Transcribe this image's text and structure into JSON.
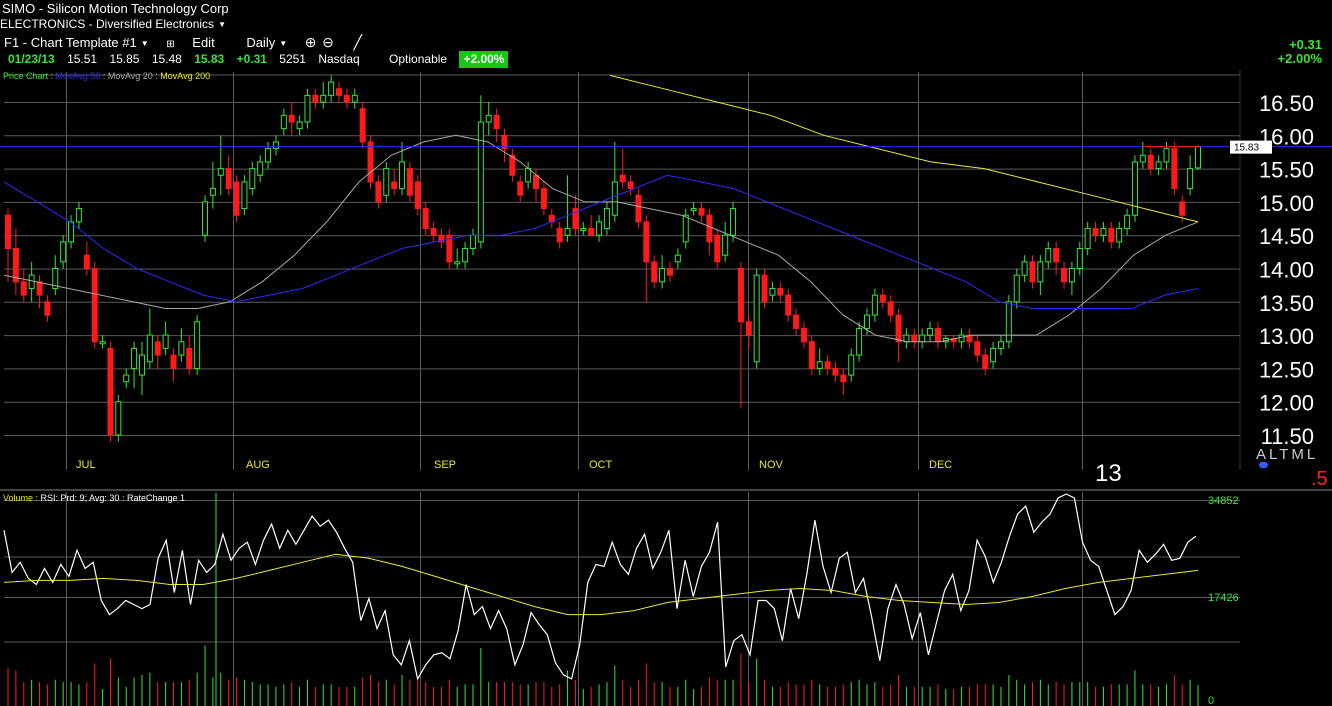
{
  "header": {
    "symbol_title": "SIMO - Silicon Motion Technology Corp",
    "group": "ELECTRONICS - Diversified Electronics",
    "template": "F1 - Chart Template #1",
    "edit_label": "Edit",
    "period": "Daily"
  },
  "quote": {
    "date": "01/23/13",
    "open": "15.51",
    "high": "15.85",
    "low": "15.48",
    "close": "15.83",
    "change": "+0.31",
    "volume": "5251",
    "exchange": "Nasdaq",
    "optionable": "Optionable",
    "pct_badge": "+2.00%"
  },
  "change_display": {
    "abs": "+0.31",
    "pct": "+2.00%"
  },
  "legend_price": {
    "price": "Price Chart",
    "ma50": "MovAvg 50",
    "ma20": "MovAvg 20",
    "ma200": "MovAvg 200"
  },
  "legend_lower": {
    "volume": "Volume",
    "rsi": "RSI: Prd: 9; Avg: 30",
    "rate": "RateChange 1"
  },
  "bottom_labels": {
    "year": "13",
    "altml": "ALTML",
    "fraction": ".5"
  },
  "colors": {
    "up": "#35e635",
    "down": "#ff1a1a",
    "ma50": "#2a2aff",
    "ma20": "#a8a8a8",
    "ma200": "#e8e830",
    "grid": "#5a5a5a",
    "rsi": "#ffffff",
    "rsi_avg": "#e8e830",
    "axis_text": "#35e635"
  },
  "chart_data": [
    {
      "type": "candlestick",
      "yticks": [
        "16.50",
        "16.00",
        "15.50",
        "15.00",
        "14.50",
        "14.00",
        "13.50",
        "13.00",
        "12.50",
        "12.00",
        "11.50"
      ],
      "ylim": [
        11.5,
        16.5
      ],
      "months": [
        "JUL",
        "AUG",
        "SEP",
        "OCT",
        "NOV",
        "DEC"
      ],
      "last_price_label": "15.83",
      "horizontal_line": 15.83,
      "candles": [
        [
          14.8,
          14.3,
          14.9,
          13.8
        ],
        [
          14.3,
          13.8,
          14.6,
          13.6
        ],
        [
          13.8,
          13.6,
          14.0,
          13.5
        ],
        [
          13.7,
          13.9,
          14.1,
          13.5
        ],
        [
          13.8,
          13.6,
          13.9,
          13.4
        ],
        [
          13.5,
          13.3,
          13.6,
          13.2
        ],
        [
          13.7,
          14.0,
          14.2,
          13.6
        ],
        [
          14.1,
          14.4,
          14.5,
          14.0
        ],
        [
          14.4,
          14.7,
          14.8,
          14.3
        ],
        [
          14.7,
          14.9,
          15.0,
          14.6
        ],
        [
          14.2,
          14.0,
          14.4,
          13.9
        ],
        [
          14.0,
          12.9,
          14.1,
          12.8
        ],
        [
          12.9,
          12.9,
          13.0,
          12.8
        ],
        [
          12.8,
          11.5,
          12.9,
          11.4
        ],
        [
          11.5,
          12.0,
          12.1,
          11.4
        ],
        [
          12.3,
          12.4,
          12.5,
          12.2
        ],
        [
          12.5,
          12.8,
          12.9,
          12.2
        ],
        [
          12.4,
          12.7,
          12.9,
          12.1
        ],
        [
          12.6,
          13.0,
          13.4,
          12.5
        ],
        [
          12.9,
          12.7,
          13.0,
          12.5
        ],
        [
          12.8,
          13.0,
          13.2,
          12.7
        ],
        [
          12.7,
          12.5,
          12.8,
          12.3
        ],
        [
          12.7,
          12.9,
          13.1,
          12.6
        ],
        [
          12.8,
          12.5,
          13.0,
          12.4
        ],
        [
          12.5,
          13.2,
          13.3,
          12.4
        ],
        [
          14.5,
          15.0,
          15.1,
          14.4
        ],
        [
          15.1,
          15.2,
          15.6,
          14.9
        ],
        [
          15.4,
          15.5,
          16.0,
          15.1
        ],
        [
          15.5,
          15.2,
          15.7,
          15.1
        ],
        [
          15.3,
          14.8,
          15.4,
          14.7
        ],
        [
          14.9,
          15.3,
          15.4,
          14.8
        ],
        [
          15.2,
          15.5,
          15.6,
          15.1
        ],
        [
          15.4,
          15.6,
          15.7,
          15.3
        ],
        [
          15.6,
          15.8,
          15.9,
          15.5
        ],
        [
          15.8,
          15.9,
          16.0,
          15.7
        ],
        [
          16.1,
          16.3,
          16.4,
          16.0
        ],
        [
          16.3,
          16.2,
          16.5,
          16.0
        ],
        [
          16.1,
          16.2,
          16.3,
          16.0
        ],
        [
          16.2,
          16.6,
          16.7,
          16.1
        ],
        [
          16.6,
          16.5,
          16.7,
          16.4
        ],
        [
          16.5,
          16.6,
          16.8,
          16.4
        ],
        [
          16.6,
          16.8,
          16.9,
          16.5
        ],
        [
          16.7,
          16.6,
          16.8,
          16.5
        ],
        [
          16.6,
          16.5,
          16.7,
          16.4
        ],
        [
          16.5,
          16.6,
          16.7,
          16.4
        ],
        [
          16.4,
          15.9,
          16.5,
          15.8
        ],
        [
          15.9,
          15.3,
          16.0,
          15.2
        ],
        [
          15.3,
          15.0,
          15.4,
          14.9
        ],
        [
          15.1,
          15.5,
          15.6,
          15.0
        ],
        [
          15.3,
          15.2,
          15.5,
          15.1
        ],
        [
          15.2,
          15.6,
          15.9,
          15.1
        ],
        [
          15.5,
          15.1,
          15.6,
          15.0
        ],
        [
          15.3,
          14.9,
          15.4,
          14.8
        ],
        [
          14.9,
          14.6,
          15.0,
          14.5
        ],
        [
          14.6,
          14.5,
          14.7,
          14.4
        ],
        [
          14.5,
          14.4,
          14.6,
          14.3
        ],
        [
          14.5,
          14.1,
          14.6,
          14.0
        ],
        [
          14.1,
          14.1,
          14.3,
          14.0
        ],
        [
          14.1,
          14.3,
          14.4,
          14.0
        ],
        [
          14.3,
          14.5,
          14.6,
          14.2
        ],
        [
          14.4,
          16.2,
          16.6,
          14.3
        ],
        [
          16.2,
          16.3,
          16.5,
          16.0
        ],
        [
          16.3,
          16.1,
          16.4,
          15.9
        ],
        [
          16.0,
          15.8,
          16.1,
          15.6
        ],
        [
          15.7,
          15.4,
          15.8,
          15.3
        ],
        [
          15.3,
          15.1,
          15.4,
          15.0
        ],
        [
          15.3,
          15.5,
          15.6,
          15.2
        ],
        [
          15.4,
          15.2,
          15.5,
          15.0
        ],
        [
          15.2,
          14.9,
          15.3,
          14.8
        ],
        [
          14.8,
          14.7,
          14.9,
          14.6
        ],
        [
          14.6,
          14.4,
          14.7,
          14.3
        ],
        [
          14.5,
          14.6,
          15.4,
          14.4
        ],
        [
          14.9,
          14.6,
          15.1,
          14.5
        ],
        [
          14.6,
          14.6,
          14.7,
          14.5
        ],
        [
          14.6,
          14.5,
          14.8,
          14.5
        ],
        [
          14.5,
          14.7,
          14.8,
          14.4
        ],
        [
          14.6,
          14.9,
          15.0,
          14.5
        ],
        [
          14.8,
          15.3,
          15.9,
          14.7
        ],
        [
          15.4,
          15.3,
          15.8,
          15.2
        ],
        [
          15.3,
          15.2,
          15.4,
          15.1
        ],
        [
          15.1,
          14.7,
          15.2,
          14.6
        ],
        [
          14.7,
          14.1,
          14.8,
          13.5
        ],
        [
          14.1,
          13.8,
          14.2,
          13.7
        ],
        [
          13.8,
          14.0,
          14.2,
          13.7
        ],
        [
          14.0,
          13.9,
          14.1,
          13.8
        ],
        [
          14.1,
          14.2,
          14.3,
          14.0
        ],
        [
          14.4,
          14.8,
          14.9,
          14.3
        ],
        [
          14.9,
          14.9,
          15.0,
          14.8
        ],
        [
          14.9,
          14.8,
          15.0,
          14.7
        ],
        [
          14.8,
          14.4,
          14.9,
          14.2
        ],
        [
          14.5,
          14.1,
          14.6,
          14.0
        ],
        [
          14.2,
          14.5,
          14.7,
          14.1
        ],
        [
          14.5,
          14.9,
          15.0,
          14.4
        ],
        [
          14.0,
          13.2,
          14.1,
          11.9
        ],
        [
          13.2,
          13.0,
          13.3,
          12.8
        ],
        [
          12.6,
          13.9,
          14.0,
          12.5
        ],
        [
          13.9,
          13.5,
          14.0,
          13.4
        ],
        [
          13.6,
          13.7,
          13.8,
          13.5
        ],
        [
          13.7,
          13.6,
          13.8,
          13.5
        ],
        [
          13.6,
          13.3,
          13.7,
          13.2
        ],
        [
          13.3,
          13.1,
          13.4,
          13.0
        ],
        [
          13.1,
          12.9,
          13.2,
          12.8
        ],
        [
          12.9,
          12.5,
          13.0,
          12.4
        ],
        [
          12.5,
          12.6,
          12.8,
          12.4
        ],
        [
          12.6,
          12.5,
          12.7,
          12.4
        ],
        [
          12.5,
          12.4,
          12.6,
          12.3
        ],
        [
          12.4,
          12.3,
          12.5,
          12.1
        ],
        [
          12.4,
          12.7,
          12.8,
          12.3
        ],
        [
          12.7,
          13.1,
          13.2,
          12.6
        ],
        [
          13.1,
          13.3,
          13.4,
          13.0
        ],
        [
          13.3,
          13.6,
          13.7,
          13.2
        ],
        [
          13.6,
          13.5,
          13.7,
          13.4
        ],
        [
          13.5,
          13.3,
          13.6,
          13.2
        ],
        [
          13.3,
          12.9,
          13.4,
          12.6
        ],
        [
          12.9,
          13.0,
          13.1,
          12.8
        ],
        [
          13.0,
          12.9,
          13.1,
          12.8
        ],
        [
          12.9,
          13.0,
          13.1,
          12.8
        ],
        [
          13.0,
          13.1,
          13.2,
          12.9
        ],
        [
          13.1,
          12.9,
          13.2,
          12.8
        ],
        [
          12.9,
          12.95,
          13.0,
          12.8
        ],
        [
          12.95,
          12.9,
          13.0,
          12.8
        ],
        [
          12.9,
          13.0,
          13.1,
          12.8
        ],
        [
          13.0,
          12.9,
          13.1,
          12.8
        ],
        [
          12.9,
          12.7,
          13.0,
          12.6
        ],
        [
          12.7,
          12.5,
          12.8,
          12.4
        ],
        [
          12.6,
          12.8,
          12.9,
          12.5
        ],
        [
          12.8,
          12.9,
          13.0,
          12.7
        ],
        [
          12.9,
          13.5,
          13.6,
          12.8
        ],
        [
          13.5,
          13.9,
          14.0,
          13.4
        ],
        [
          13.9,
          14.1,
          14.2,
          13.8
        ],
        [
          14.1,
          13.8,
          14.2,
          13.7
        ],
        [
          13.8,
          14.1,
          14.2,
          13.6
        ],
        [
          14.1,
          14.3,
          14.4,
          14.0
        ],
        [
          14.3,
          14.1,
          14.4,
          13.9
        ],
        [
          14.0,
          13.8,
          14.1,
          13.7
        ],
        [
          13.8,
          14.0,
          14.1,
          13.6
        ],
        [
          14.0,
          14.3,
          14.4,
          13.9
        ],
        [
          14.3,
          14.6,
          14.7,
          14.2
        ],
        [
          14.6,
          14.5,
          14.7,
          14.4
        ],
        [
          14.5,
          14.6,
          14.7,
          14.4
        ],
        [
          14.6,
          14.4,
          14.7,
          14.3
        ],
        [
          14.4,
          14.6,
          14.7,
          14.3
        ],
        [
          14.6,
          14.8,
          14.9,
          14.5
        ],
        [
          14.8,
          15.6,
          15.7,
          14.7
        ],
        [
          15.6,
          15.7,
          15.9,
          15.5
        ],
        [
          15.7,
          15.5,
          15.8,
          15.4
        ],
        [
          15.5,
          15.6,
          15.7,
          15.4
        ],
        [
          15.6,
          15.8,
          15.9,
          15.5
        ],
        [
          15.8,
          15.2,
          15.9,
          15.1
        ],
        [
          15.0,
          14.8,
          15.1,
          14.7
        ],
        [
          15.2,
          15.5,
          15.7,
          15.1
        ],
        [
          15.51,
          15.83,
          15.85,
          15.48
        ]
      ],
      "ma20": [
        13.9,
        13.8,
        13.7,
        13.6,
        13.5,
        13.4,
        13.4,
        13.5,
        13.8,
        14.2,
        14.7,
        15.3,
        15.7,
        15.9,
        16.0,
        15.9,
        15.6,
        15.2,
        15.0,
        15.0,
        14.9,
        14.8,
        14.6,
        14.4,
        14.2,
        13.8,
        13.3,
        13.0,
        12.9,
        12.9,
        13.0,
        13.0,
        13.0,
        13.3,
        13.7,
        14.2,
        14.5,
        14.7
      ],
      "ma50": [
        15.3,
        15.0,
        14.7,
        14.3,
        14.0,
        13.8,
        13.6,
        13.5,
        13.6,
        13.7,
        13.9,
        14.1,
        14.3,
        14.4,
        14.5,
        14.5,
        14.6,
        14.8,
        15.0,
        15.2,
        15.4,
        15.3,
        15.2,
        15.0,
        14.8,
        14.6,
        14.4,
        14.2,
        14.0,
        13.8,
        13.5,
        13.4,
        13.4,
        13.4,
        13.4,
        13.6,
        13.7
      ],
      "ma200": [
        16.9,
        16.7,
        16.5,
        16.3,
        16.0,
        15.8,
        15.6,
        15.5,
        15.3,
        15.1,
        14.9,
        14.7
      ]
    },
    {
      "type": "rsi_volume",
      "yticks": [
        "34852",
        "17426",
        "0"
      ],
      "rsi": [
        82,
        61,
        66,
        58,
        55,
        63,
        56,
        65,
        59,
        72,
        63,
        66,
        47,
        40,
        43,
        47,
        45,
        43,
        45,
        68,
        77,
        51,
        72,
        45,
        67,
        61,
        65,
        80,
        67,
        73,
        76,
        65,
        77,
        85,
        73,
        82,
        75,
        82,
        89,
        84,
        87,
        81,
        73,
        66,
        37,
        48,
        33,
        42,
        20,
        15,
        27,
        8,
        15,
        20,
        21,
        18,
        32,
        55,
        40,
        44,
        33,
        42,
        33,
        15,
        25,
        41,
        35,
        30,
        16,
        10,
        8,
        25,
        56,
        65,
        64,
        76,
        65,
        60,
        73,
        80,
        63,
        71,
        82,
        43,
        67,
        49,
        64,
        71,
        86,
        14,
        27,
        30,
        20,
        47,
        47,
        43,
        27,
        53,
        38,
        60,
        87,
        64,
        51,
        68,
        71,
        51,
        58,
        39,
        17,
        43,
        55,
        45,
        28,
        41,
        20,
        36,
        52,
        60,
        42,
        52,
        77,
        69,
        56,
        66,
        79,
        90,
        94,
        81,
        86,
        90,
        98,
        100,
        98,
        76,
        67,
        64,
        52,
        40,
        44,
        52,
        72,
        66,
        70,
        75,
        67,
        68,
        76,
        79
      ],
      "rsi_avg": [
        56,
        57,
        57,
        58,
        57,
        55,
        55,
        58,
        62,
        66,
        70,
        68,
        64,
        59,
        54,
        49,
        44,
        40,
        40,
        42,
        46,
        48,
        50,
        52,
        53,
        52,
        49,
        47,
        46,
        45,
        46,
        49,
        53,
        56,
        58,
        60,
        62
      ]
    }
  ]
}
